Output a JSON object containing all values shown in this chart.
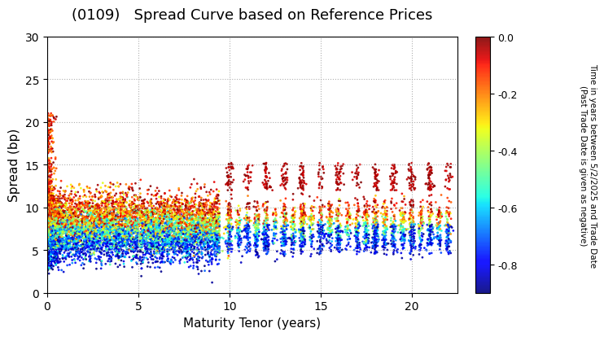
{
  "title": "(0109)   Spread Curve based on Reference Prices",
  "xlabel": "Maturity Tenor (years)",
  "ylabel": "Spread (bp)",
  "colorbar_label": "Time in years between 5/2/2025 and Trade Date\n(Past Trade Date is given as negative)",
  "xlim": [
    0,
    22.5
  ],
  "ylim": [
    0,
    30
  ],
  "xticks": [
    0,
    5,
    10,
    15,
    20
  ],
  "yticks": [
    0,
    5,
    10,
    15,
    20,
    25,
    30
  ],
  "color_min": -0.9,
  "color_max": 0.0,
  "colorbar_ticks": [
    0.0,
    -0.2,
    -0.4,
    -0.6,
    -0.8
  ],
  "background_color": "#ffffff",
  "grid_color": "#b0b0b0",
  "title_fontsize": 13,
  "axis_fontsize": 11,
  "seed": 42
}
